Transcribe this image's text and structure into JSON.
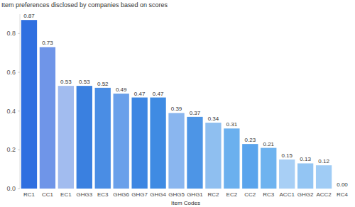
{
  "chart_data": {
    "type": "bar",
    "title": "Item preferences disclosed by companies based on scores",
    "x_label": "Item Codes",
    "categories": [
      "RC1",
      "CC1",
      "EC1",
      "GHG3",
      "EC3",
      "GHG6",
      "GHG7",
      "GHG4",
      "GHG5",
      "GHG1",
      "RC2",
      "EC2",
      "CC2",
      "RC3",
      "ACC1",
      "GHG2",
      "ACC2",
      "RC4"
    ],
    "values": [
      0.87,
      0.73,
      0.53,
      0.53,
      0.52,
      0.49,
      0.47,
      0.47,
      0.39,
      0.37,
      0.34,
      0.31,
      0.23,
      0.21,
      0.15,
      0.13,
      0.12,
      0
    ],
    "value_labels": [
      "0.87",
      "0.73",
      "0.53",
      "0.53",
      "0.52",
      "0.49",
      "0.47",
      "0.47",
      "0.39",
      "0.37",
      "0.34",
      "0.31",
      "0.23",
      "0.21",
      "0.15",
      "0.13",
      "0.12",
      "0.00"
    ],
    "colors": [
      "#2f6fe0",
      "#6f95e8",
      "#a2bcef",
      "#3a80e0",
      "#4a8de4",
      "#6aa0ea",
      "#3d86e2",
      "#3f8be3",
      "#8ab6ef",
      "#4d95e6",
      "#8fbff0",
      "#6bb0ee",
      "#5aa4ec",
      "#6eb3ef",
      "#a8cff5",
      "#93c5f3",
      "#a0ccf5",
      "#b5d6f6"
    ],
    "ylim": [
      0,
      0.9
    ],
    "yticks": [
      {
        "value": 0,
        "label": "0.0"
      },
      {
        "value": 0.2,
        "label": "0.2"
      },
      {
        "value": 0.4,
        "label": "0.4"
      },
      {
        "value": 0.6,
        "label": "0.6"
      },
      {
        "value": 0.8,
        "label": "0.8"
      }
    ],
    "grid": false,
    "data_labels": true
  }
}
